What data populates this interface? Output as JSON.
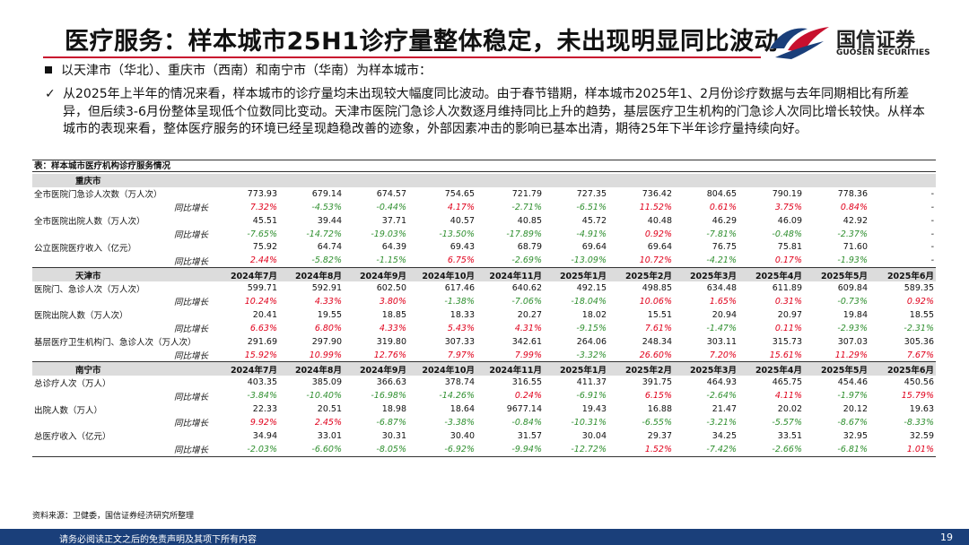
{
  "header": {
    "title": "医疗服务：样本城市25H1诊疗量整体稳定，未出现明显同比波动",
    "logo_cn": "国信证券",
    "logo_en": "GUOSEN SECURITIES",
    "brand_red": "#c8102e",
    "brand_blue": "#1a3f7a"
  },
  "bullet": "以天津市（华北）、重庆市（西南）和南宁市（华南）为样本城市：",
  "check_mark": "✓",
  "analysis": "从2025年上半年的情况来看，样本城市的诊疗量均未出现较大幅度同比波动。由于春节错期，样本城市2025年1、2月份诊疗数据与去年同期相比有所差异，但后续3-6月份整体呈现低个位数同比变动。天津市医院门急诊人次数逐月维持同比上升的趋势，基层医疗卫生机构的门急诊人次同比增长较快。从样本城市的表现来看，整体医疗服务的环境已经呈现趋稳改善的迹象，外部因素冲击的影响已基本出清，期待25年下半年诊疗量持续向好。",
  "table": {
    "caption": "表：样本城市医疗机构诊疗服务情况",
    "months": [
      "2024年7月",
      "2024年8月",
      "2024年9月",
      "2024年10月",
      "2024年11月",
      "2025年1月",
      "2025年2月",
      "2025年3月",
      "2025年4月",
      "2025年5月",
      "2025年6月"
    ],
    "sections": [
      {
        "city": "重庆市",
        "show_months": false,
        "metrics": [
          {
            "label": "全市医院门急诊人次数（万人次）",
            "values": [
              "773.93",
              "679.14",
              "674.57",
              "754.65",
              "721.79",
              "727.35",
              "736.42",
              "804.65",
              "790.19",
              "778.36",
              "-"
            ],
            "growth_label": "同比增长",
            "growth": [
              "7.32%",
              "-4.53%",
              "-0.44%",
              "4.17%",
              "-2.71%",
              "-6.51%",
              "11.52%",
              "0.61%",
              "3.75%",
              "0.84%",
              "-"
            ]
          },
          {
            "label": "全市医院出院人数（万人次）",
            "values": [
              "45.51",
              "39.44",
              "37.71",
              "40.57",
              "40.85",
              "45.72",
              "40.48",
              "46.29",
              "46.09",
              "42.92",
              "-"
            ],
            "growth_label": "同比增长",
            "growth": [
              "-7.65%",
              "-14.72%",
              "-19.03%",
              "-13.50%",
              "-17.89%",
              "-4.91%",
              "0.92%",
              "-7.81%",
              "-0.48%",
              "-2.37%",
              "-"
            ]
          },
          {
            "label": "公立医院医疗收入（亿元）",
            "values": [
              "75.92",
              "64.74",
              "64.39",
              "69.43",
              "68.79",
              "69.64",
              "69.64",
              "76.75",
              "75.81",
              "71.60",
              "-"
            ],
            "growth_label": "同比增长",
            "growth": [
              "2.44%",
              "-5.82%",
              "-1.15%",
              "6.75%",
              "-2.69%",
              "-13.09%",
              "10.72%",
              "-4.21%",
              "0.17%",
              "-1.93%",
              "-"
            ]
          }
        ]
      },
      {
        "city": "天津市",
        "show_months": true,
        "metrics": [
          {
            "label": "医院门、急诊人次（万人次）",
            "values": [
              "599.71",
              "592.91",
              "602.50",
              "617.46",
              "640.62",
              "492.15",
              "498.85",
              "634.48",
              "611.89",
              "609.84",
              "589.35"
            ],
            "growth_label": "同比增长",
            "growth": [
              "10.24%",
              "4.33%",
              "3.80%",
              "-1.38%",
              "-7.06%",
              "-18.04%",
              "10.06%",
              "1.65%",
              "0.31%",
              "-0.73%",
              "0.92%"
            ]
          },
          {
            "label": "医院出院人数（万人次）",
            "values": [
              "20.41",
              "19.55",
              "18.85",
              "18.33",
              "20.27",
              "18.02",
              "15.51",
              "20.94",
              "20.97",
              "19.84",
              "18.55"
            ],
            "growth_label": "同比增长",
            "growth": [
              "6.63%",
              "6.80%",
              "4.33%",
              "5.43%",
              "4.31%",
              "-9.15%",
              "7.61%",
              "-1.47%",
              "0.11%",
              "-2.93%",
              "-2.31%"
            ]
          },
          {
            "label": "基层医疗卫生机构门、急诊人次（万人次）",
            "values": [
              "291.69",
              "297.90",
              "319.80",
              "307.33",
              "342.61",
              "264.06",
              "248.34",
              "303.11",
              "315.73",
              "307.03",
              "305.36"
            ],
            "growth_label": "同比增长",
            "growth": [
              "15.92%",
              "10.99%",
              "12.76%",
              "7.97%",
              "7.99%",
              "-3.32%",
              "26.60%",
              "7.20%",
              "15.61%",
              "11.29%",
              "7.67%"
            ]
          }
        ]
      },
      {
        "city": "南宁市",
        "show_months": true,
        "metrics": [
          {
            "label": "总诊疗人次（万人）",
            "values": [
              "403.35",
              "385.09",
              "366.63",
              "378.74",
              "316.55",
              "411.37",
              "391.75",
              "464.93",
              "465.75",
              "454.46",
              "450.56"
            ],
            "growth_label": "同比增长",
            "growth": [
              "-3.84%",
              "-10.40%",
              "-16.98%",
              "-14.26%",
              "0.24%",
              "-6.91%",
              "6.15%",
              "-2.64%",
              "4.11%",
              "-1.97%",
              "15.79%"
            ]
          },
          {
            "label": "出院人数（万人）",
            "values": [
              "22.33",
              "20.51",
              "18.98",
              "18.64",
              "9677.14",
              "19.43",
              "16.88",
              "21.47",
              "20.02",
              "20.12",
              "19.63"
            ],
            "growth_label": "同比增长",
            "growth": [
              "9.92%",
              "2.45%",
              "-6.87%",
              "-3.38%",
              "-0.84%",
              "-10.31%",
              "-6.55%",
              "-3.21%",
              "-5.57%",
              "-8.67%",
              "-8.33%"
            ]
          },
          {
            "label": "总医疗收入（亿元）",
            "values": [
              "34.94",
              "33.01",
              "30.31",
              "30.40",
              "31.57",
              "30.04",
              "29.37",
              "34.25",
              "33.51",
              "32.95",
              "32.59"
            ],
            "growth_label": "同比增长",
            "growth": [
              "-2.03%",
              "-6.60%",
              "-8.05%",
              "-6.92%",
              "-9.94%",
              "-12.72%",
              "1.52%",
              "-7.42%",
              "-2.66%",
              "-6.81%",
              "1.01%"
            ]
          }
        ]
      }
    ]
  },
  "source": "资料来源：卫健委，国信证券经济研究所整理",
  "footer": {
    "disclaimer": "请务必阅读正文之后的免责声明及其项下所有内容",
    "page": "19"
  }
}
